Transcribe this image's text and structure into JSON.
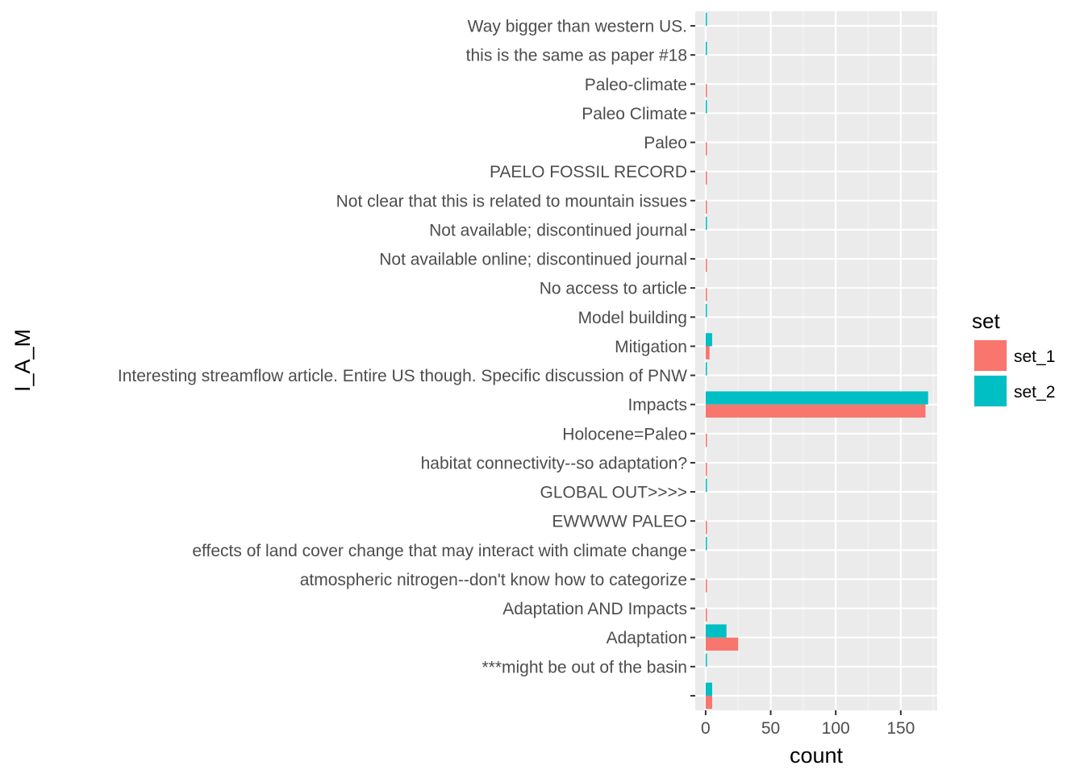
{
  "chart_data": {
    "type": "bar",
    "orientation": "horizontal",
    "position": "dodge",
    "xlabel": "count",
    "ylabel": "I_A_M",
    "xlim": [
      -8,
      178
    ],
    "xticks": [
      0,
      50,
      100,
      150
    ],
    "grid": true,
    "legend": {
      "title": "set",
      "placement": "right"
    },
    "categories": [
      "",
      "***might be out of the basin",
      "Adaptation",
      "Adaptation AND Impacts",
      "atmospheric nitrogen--don't know how to categorize",
      "effects of land cover change that may interact with climate change",
      "EWWWW PALEO",
      "GLOBAL OUT>>>>",
      "habitat connectivity--so adaptation?",
      "Holocene=Paleo",
      "Impacts",
      "Interesting streamflow article. Entire US though. Specific discussion of PNW ",
      "Mitigation",
      "Model building",
      "No access to article",
      "Not available online; discontinued journal",
      "Not available; discontinued journal",
      "Not clear that this is related to mountain issues",
      "PAELO FOSSIL RECORD",
      "Paleo",
      "Paleo Climate",
      "Paleo-climate",
      "this is the same as paper #18",
      "Way bigger than western US. "
    ],
    "series": [
      {
        "name": "set_1",
        "color": "#F8766D",
        "values": [
          5,
          0,
          25,
          1,
          1,
          0,
          1,
          0,
          1,
          1,
          169,
          0,
          3,
          0,
          1,
          1,
          0,
          1,
          1,
          1,
          0,
          1,
          0,
          0
        ]
      },
      {
        "name": "set_2",
        "color": "#00BFC4",
        "values": [
          5,
          1,
          16,
          0,
          0,
          1,
          0,
          1,
          0,
          0,
          171,
          1,
          5,
          1,
          0,
          0,
          1,
          0,
          0,
          0,
          1,
          0,
          1,
          1
        ]
      }
    ]
  },
  "colors": {
    "panel_background": "#EBEBEB",
    "grid_major": "#FFFFFF"
  }
}
